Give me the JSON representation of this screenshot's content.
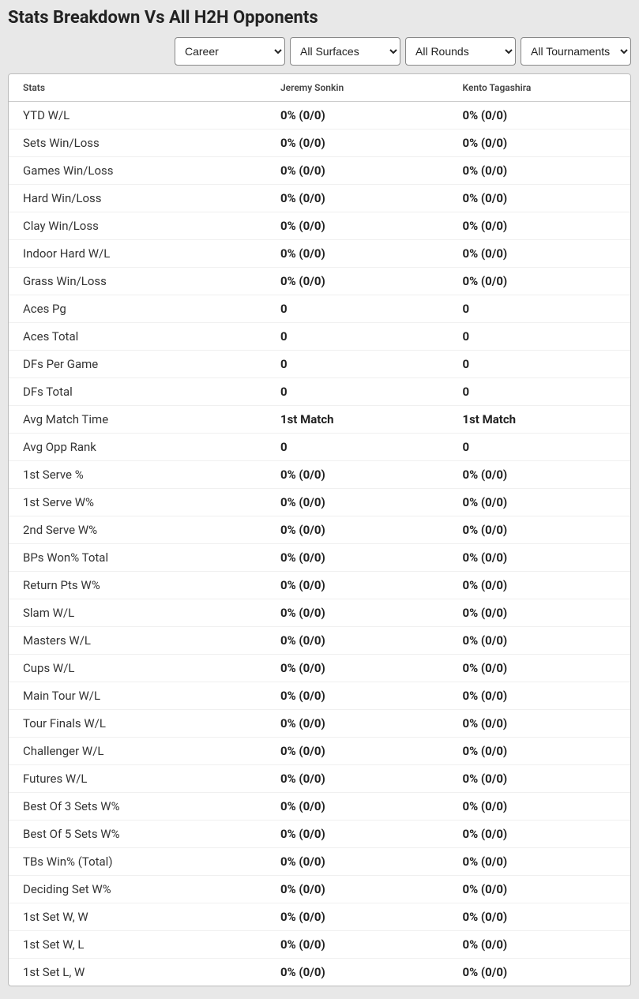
{
  "title": "Stats Breakdown Vs All H2H Opponents",
  "filters": {
    "career": "Career",
    "surfaces": "All Surfaces",
    "rounds": "All Rounds",
    "tournaments": "All Tournaments"
  },
  "table": {
    "columns": [
      "Stats",
      "Jeremy Sonkin",
      "Kento Tagashira"
    ],
    "rows": [
      [
        "YTD W/L",
        "0% (0/0)",
        "0% (0/0)"
      ],
      [
        "Sets Win/Loss",
        "0% (0/0)",
        "0% (0/0)"
      ],
      [
        "Games Win/Loss",
        "0% (0/0)",
        "0% (0/0)"
      ],
      [
        "Hard Win/Loss",
        "0% (0/0)",
        "0% (0/0)"
      ],
      [
        "Clay Win/Loss",
        "0% (0/0)",
        "0% (0/0)"
      ],
      [
        "Indoor Hard W/L",
        "0% (0/0)",
        "0% (0/0)"
      ],
      [
        "Grass Win/Loss",
        "0% (0/0)",
        "0% (0/0)"
      ],
      [
        "Aces Pg",
        "0",
        "0"
      ],
      [
        "Aces Total",
        "0",
        "0"
      ],
      [
        "DFs Per Game",
        "0",
        "0"
      ],
      [
        "DFs Total",
        "0",
        "0"
      ],
      [
        "Avg Match Time",
        "1st Match",
        "1st Match"
      ],
      [
        "Avg Opp Rank",
        "0",
        "0"
      ],
      [
        "1st Serve %",
        "0% (0/0)",
        "0% (0/0)"
      ],
      [
        "1st Serve W%",
        "0% (0/0)",
        "0% (0/0)"
      ],
      [
        "2nd Serve W%",
        "0% (0/0)",
        "0% (0/0)"
      ],
      [
        "BPs Won% Total",
        "0% (0/0)",
        "0% (0/0)"
      ],
      [
        "Return Pts W%",
        "0% (0/0)",
        "0% (0/0)"
      ],
      [
        "Slam W/L",
        "0% (0/0)",
        "0% (0/0)"
      ],
      [
        "Masters W/L",
        "0% (0/0)",
        "0% (0/0)"
      ],
      [
        "Cups W/L",
        "0% (0/0)",
        "0% (0/0)"
      ],
      [
        "Main Tour W/L",
        "0% (0/0)",
        "0% (0/0)"
      ],
      [
        "Tour Finals W/L",
        "0% (0/0)",
        "0% (0/0)"
      ],
      [
        "Challenger W/L",
        "0% (0/0)",
        "0% (0/0)"
      ],
      [
        "Futures W/L",
        "0% (0/0)",
        "0% (0/0)"
      ],
      [
        "Best Of 3 Sets W%",
        "0% (0/0)",
        "0% (0/0)"
      ],
      [
        "Best Of 5 Sets W%",
        "0% (0/0)",
        "0% (0/0)"
      ],
      [
        "TBs Win% (Total)",
        "0% (0/0)",
        "0% (0/0)"
      ],
      [
        "Deciding Set W%",
        "0% (0/0)",
        "0% (0/0)"
      ],
      [
        "1st Set W, W",
        "0% (0/0)",
        "0% (0/0)"
      ],
      [
        "1st Set W, L",
        "0% (0/0)",
        "0% (0/0)"
      ],
      [
        "1st Set L, W",
        "0% (0/0)",
        "0% (0/0)"
      ]
    ]
  },
  "colors": {
    "page_bg": "#e8e8e8",
    "panel_bg": "#ffffff",
    "border": "#bbbbbb",
    "row_divider": "#f0f0f0",
    "text": "#222222",
    "header_text": "#444444"
  }
}
